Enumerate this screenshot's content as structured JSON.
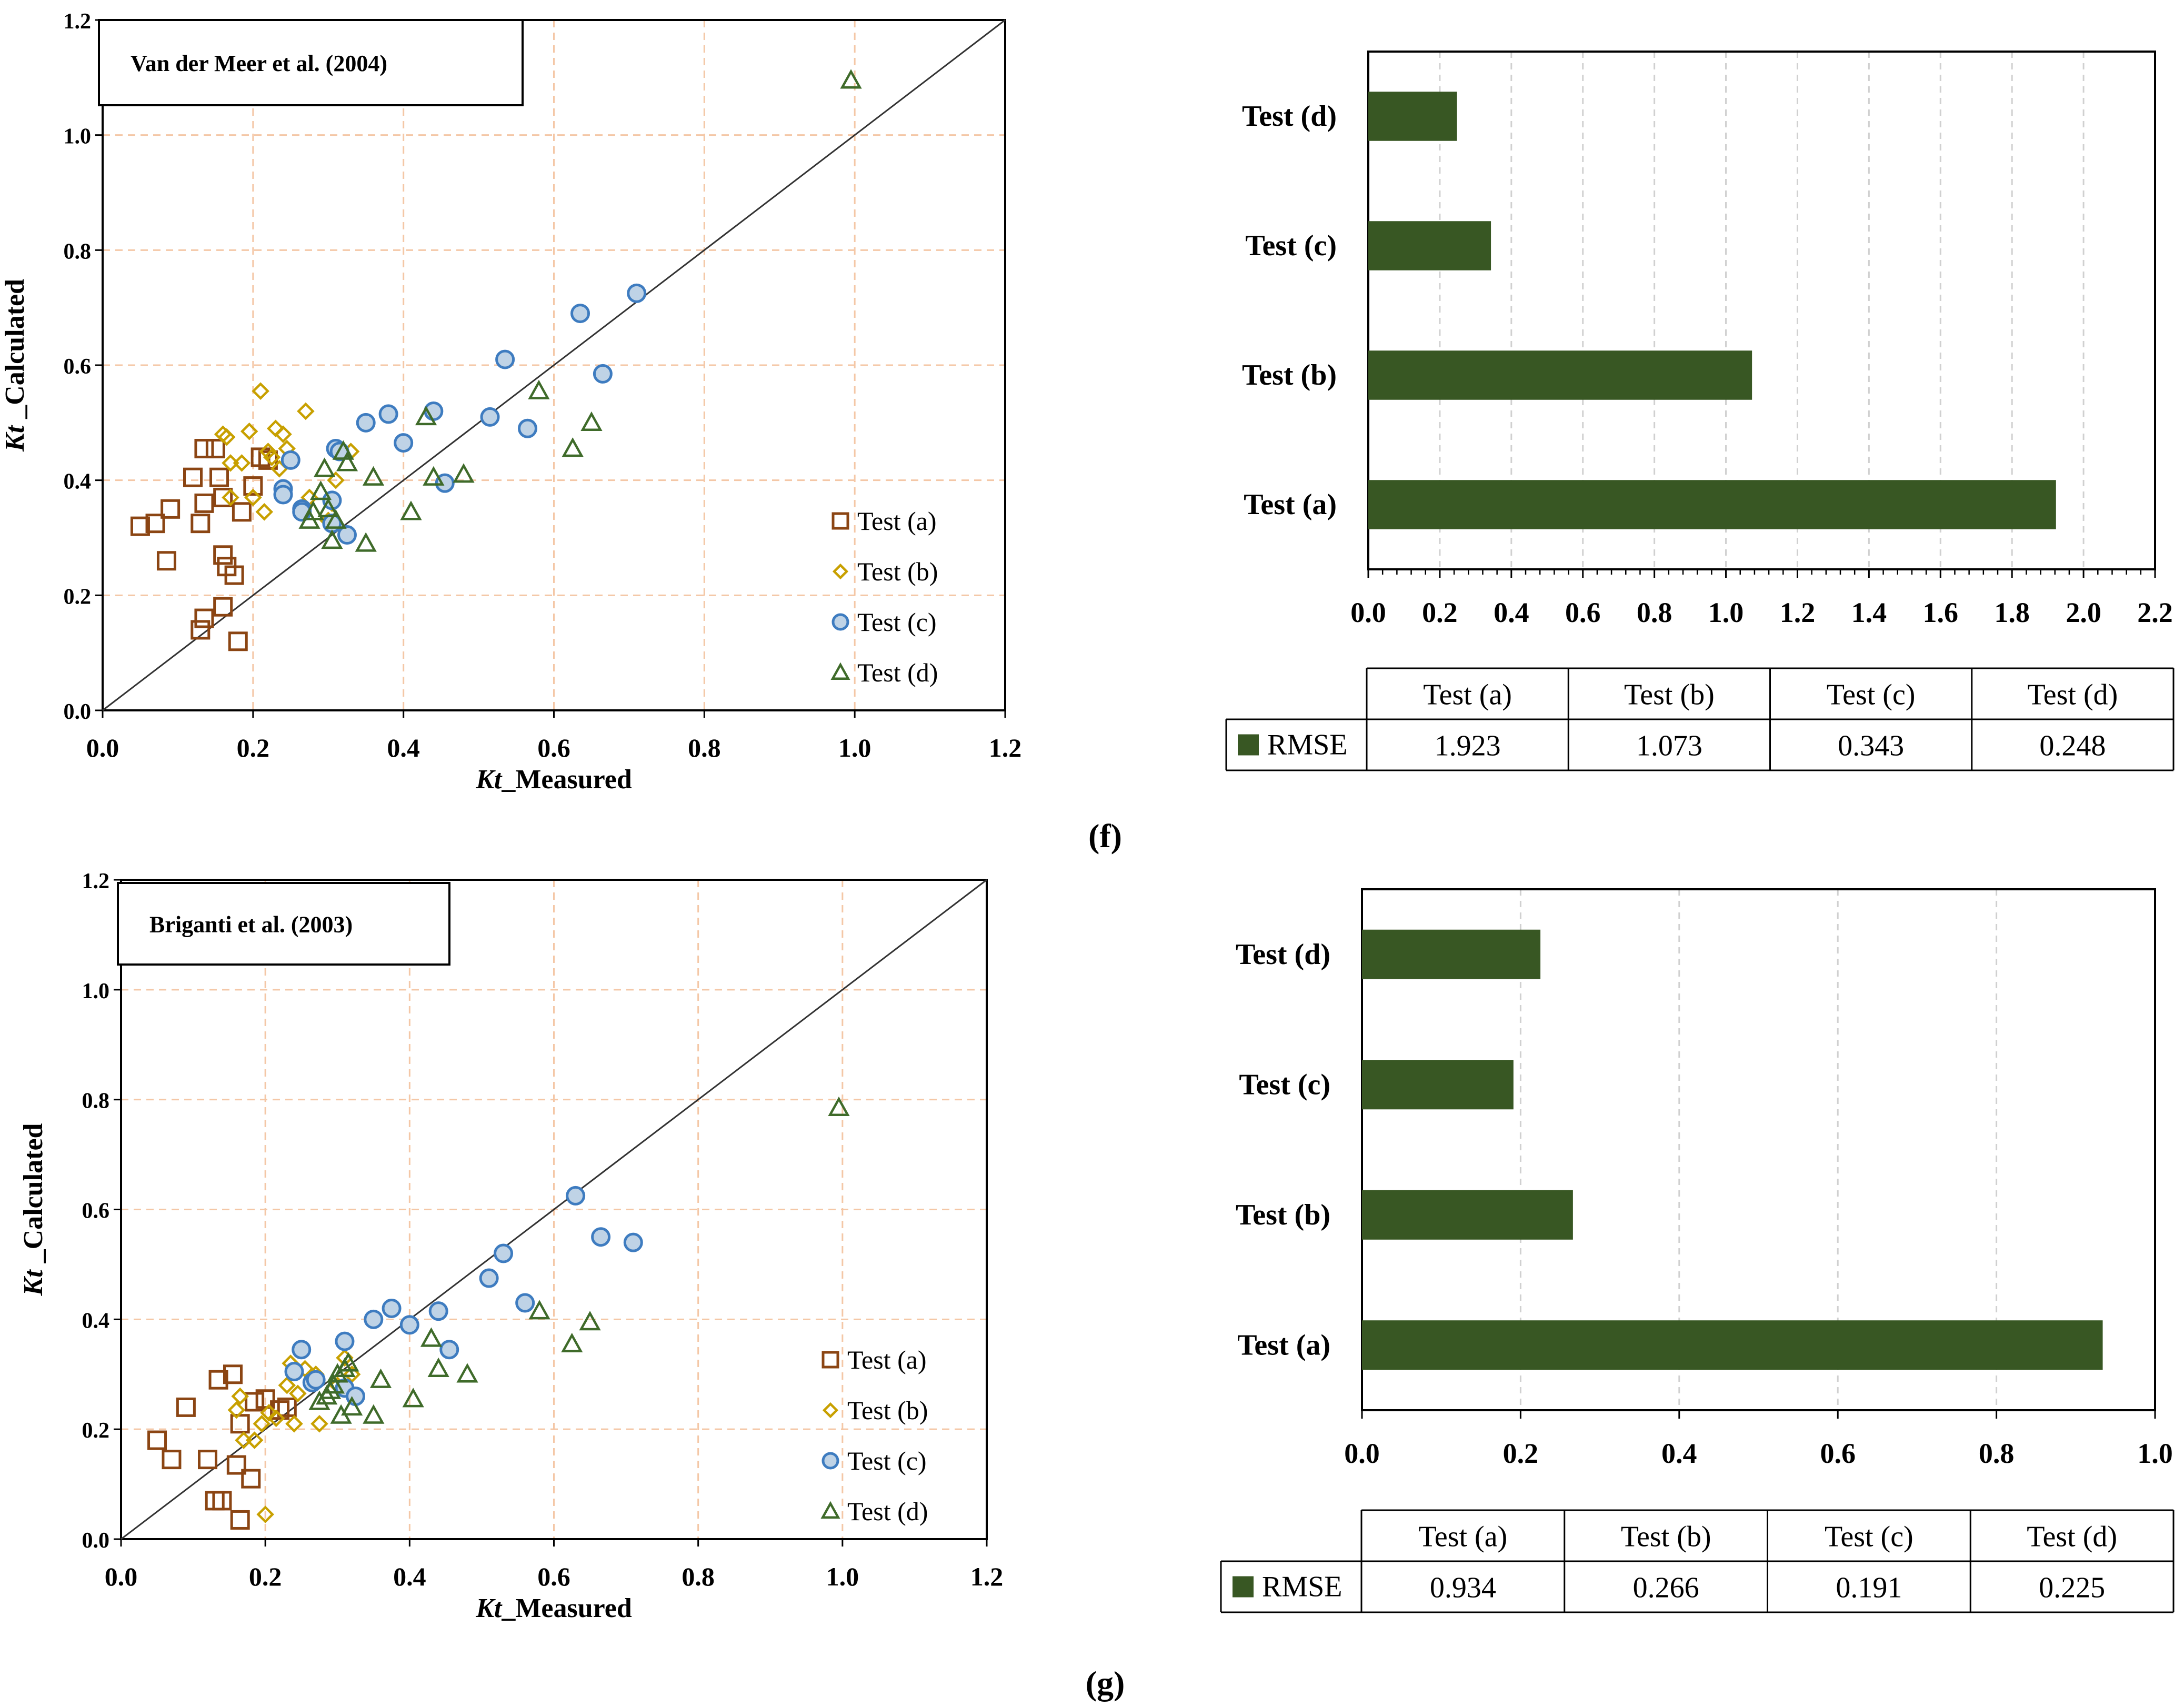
{
  "colors": {
    "test_a": "#8B4513",
    "test_b": "#C8A000",
    "test_c_fill": "#BFD3E6",
    "test_c_stroke": "#3E7CC0",
    "test_d": "#3F6B2A",
    "bar": "#385723",
    "grid": "#F4C7A6",
    "bar_grid": "#D0D0D0"
  },
  "panel_labels": {
    "f": "(f)",
    "g": "(g)"
  },
  "chart_data": [
    {
      "id": "scatter_f",
      "type": "scatter",
      "title": "Van der Meer et al. (2004)",
      "xlabel_italic": "Kt",
      "xlabel_rest": "_Measured",
      "ylabel_italic": "Kt",
      "ylabel_rest": " _Calculated",
      "xlim": [
        0,
        1.2
      ],
      "ylim": [
        0,
        1.2
      ],
      "xticks": [
        "0.0",
        "0.2",
        "0.4",
        "0.6",
        "0.8",
        "1.0",
        "1.2"
      ],
      "yticks": [
        "0.0",
        "0.2",
        "0.4",
        "0.6",
        "0.8",
        "1.0",
        "1.2"
      ],
      "reference_line": [
        [
          0,
          0
        ],
        [
          1.2,
          1.2
        ]
      ],
      "series": [
        {
          "name": "Test (a)",
          "marker": "square",
          "points": [
            [
              0.05,
              0.32
            ],
            [
              0.07,
              0.325
            ],
            [
              0.09,
              0.35
            ],
            [
              0.085,
              0.26
            ],
            [
              0.12,
              0.405
            ],
            [
              0.13,
              0.325
            ],
            [
              0.135,
              0.36
            ],
            [
              0.135,
              0.455
            ],
            [
              0.13,
              0.14
            ],
            [
              0.135,
              0.16
            ],
            [
              0.15,
              0.455
            ],
            [
              0.155,
              0.405
            ],
            [
              0.16,
              0.37
            ],
            [
              0.16,
              0.27
            ],
            [
              0.165,
              0.25
            ],
            [
              0.175,
              0.235
            ],
            [
              0.16,
              0.18
            ],
            [
              0.18,
              0.12
            ],
            [
              0.185,
              0.345
            ],
            [
              0.2,
              0.39
            ],
            [
              0.21,
              0.44
            ],
            [
              0.22,
              0.435
            ]
          ]
        },
        {
          "name": "Test (b)",
          "marker": "diamond",
          "points": [
            [
              0.16,
              0.48
            ],
            [
              0.165,
              0.475
            ],
            [
              0.17,
              0.43
            ],
            [
              0.17,
              0.37
            ],
            [
              0.185,
              0.43
            ],
            [
              0.195,
              0.485
            ],
            [
              0.2,
              0.37
            ],
            [
              0.21,
              0.555
            ],
            [
              0.215,
              0.345
            ],
            [
              0.22,
              0.45
            ],
            [
              0.23,
              0.49
            ],
            [
              0.235,
              0.42
            ],
            [
              0.24,
              0.48
            ],
            [
              0.245,
              0.455
            ],
            [
              0.27,
              0.52
            ],
            [
              0.275,
              0.37
            ],
            [
              0.3,
              0.33
            ],
            [
              0.305,
              0.36
            ],
            [
              0.31,
              0.4
            ],
            [
              0.33,
              0.45
            ],
            [
              0.225,
              0.44
            ]
          ]
        },
        {
          "name": "Test (c)",
          "marker": "circle",
          "points": [
            [
              0.24,
              0.385
            ],
            [
              0.24,
              0.375
            ],
            [
              0.25,
              0.435
            ],
            [
              0.265,
              0.35
            ],
            [
              0.265,
              0.345
            ],
            [
              0.305,
              0.365
            ],
            [
              0.31,
              0.455
            ],
            [
              0.315,
              0.45
            ],
            [
              0.325,
              0.305
            ],
            [
              0.35,
              0.5
            ],
            [
              0.38,
              0.515
            ],
            [
              0.4,
              0.465
            ],
            [
              0.44,
              0.52
            ],
            [
              0.455,
              0.395
            ],
            [
              0.515,
              0.51
            ],
            [
              0.535,
              0.61
            ],
            [
              0.565,
              0.49
            ],
            [
              0.635,
              0.69
            ],
            [
              0.665,
              0.585
            ],
            [
              0.71,
              0.725
            ],
            [
              0.305,
              0.325
            ]
          ]
        },
        {
          "name": "Test (d)",
          "marker": "triangle",
          "points": [
            [
              0.275,
              0.33
            ],
            [
              0.28,
              0.345
            ],
            [
              0.29,
              0.38
            ],
            [
              0.295,
              0.42
            ],
            [
              0.3,
              0.35
            ],
            [
              0.305,
              0.295
            ],
            [
              0.31,
              0.33
            ],
            [
              0.32,
              0.45
            ],
            [
              0.325,
              0.43
            ],
            [
              0.35,
              0.29
            ],
            [
              0.36,
              0.405
            ],
            [
              0.41,
              0.345
            ],
            [
              0.43,
              0.51
            ],
            [
              0.44,
              0.405
            ],
            [
              0.48,
              0.41
            ],
            [
              0.58,
              0.555
            ],
            [
              0.625,
              0.455
            ],
            [
              0.65,
              0.5
            ],
            [
              0.995,
              1.095
            ]
          ]
        }
      ]
    },
    {
      "id": "bar_f",
      "type": "bar",
      "orientation": "horizontal",
      "categories": [
        "Test (a)",
        "Test (b)",
        "Test (c)",
        "Test (d)"
      ],
      "series": [
        {
          "name": "RMSE",
          "values": [
            1.923,
            1.073,
            0.343,
            0.248
          ]
        }
      ],
      "value_labels": [
        "1.923",
        "1.073",
        "0.343",
        "0.248"
      ],
      "xlim": [
        0,
        2.2
      ],
      "xticks": [
        "0.0",
        "0.2",
        "0.4",
        "0.6",
        "0.8",
        "1.0",
        "1.2",
        "1.4",
        "1.6",
        "1.8",
        "2.0",
        "2.2"
      ]
    },
    {
      "id": "scatter_g",
      "type": "scatter",
      "title": "Briganti et al.  (2003)",
      "xlabel_italic": "Kt",
      "xlabel_rest": "_Measured",
      "ylabel_italic": "Kt",
      "ylabel_rest": " _Calculated",
      "xlim": [
        0,
        1.2
      ],
      "ylim": [
        0,
        1.2
      ],
      "xticks": [
        "0.0",
        "0.2",
        "0.4",
        "0.6",
        "0.8",
        "1.0",
        "1.2"
      ],
      "yticks": [
        "0.0",
        "0.2",
        "0.4",
        "0.6",
        "0.8",
        "1.0",
        "1.2"
      ],
      "reference_line": [
        [
          0,
          0
        ],
        [
          1.2,
          1.2
        ]
      ],
      "series": [
        {
          "name": "Test (a)",
          "marker": "square",
          "points": [
            [
              0.05,
              0.18
            ],
            [
              0.07,
              0.145
            ],
            [
              0.09,
              0.24
            ],
            [
              0.12,
              0.145
            ],
            [
              0.13,
              0.07
            ],
            [
              0.135,
              0.29
            ],
            [
              0.14,
              0.07
            ],
            [
              0.155,
              0.3
            ],
            [
              0.16,
              0.135
            ],
            [
              0.165,
              0.21
            ],
            [
              0.165,
              0.035
            ],
            [
              0.18,
              0.11
            ],
            [
              0.185,
              0.25
            ],
            [
              0.2,
              0.255
            ],
            [
              0.22,
              0.235
            ],
            [
              0.23,
              0.24
            ]
          ]
        },
        {
          "name": "Test (b)",
          "marker": "diamond",
          "points": [
            [
              0.16,
              0.235
            ],
            [
              0.165,
              0.26
            ],
            [
              0.17,
              0.18
            ],
            [
              0.185,
              0.18
            ],
            [
              0.195,
              0.21
            ],
            [
              0.2,
              0.045
            ],
            [
              0.205,
              0.23
            ],
            [
              0.215,
              0.22
            ],
            [
              0.23,
              0.28
            ],
            [
              0.235,
              0.32
            ],
            [
              0.24,
              0.21
            ],
            [
              0.245,
              0.265
            ],
            [
              0.255,
              0.31
            ],
            [
              0.27,
              0.3
            ],
            [
              0.275,
              0.21
            ],
            [
              0.3,
              0.28
            ],
            [
              0.31,
              0.33
            ],
            [
              0.32,
              0.3
            ]
          ]
        },
        {
          "name": "Test (c)",
          "marker": "circle",
          "points": [
            [
              0.24,
              0.305
            ],
            [
              0.25,
              0.345
            ],
            [
              0.265,
              0.285
            ],
            [
              0.27,
              0.29
            ],
            [
              0.31,
              0.275
            ],
            [
              0.31,
              0.36
            ],
            [
              0.325,
              0.26
            ],
            [
              0.35,
              0.4
            ],
            [
              0.375,
              0.42
            ],
            [
              0.4,
              0.39
            ],
            [
              0.44,
              0.415
            ],
            [
              0.455,
              0.345
            ],
            [
              0.51,
              0.475
            ],
            [
              0.53,
              0.52
            ],
            [
              0.56,
              0.43
            ],
            [
              0.63,
              0.625
            ],
            [
              0.665,
              0.55
            ],
            [
              0.71,
              0.54
            ]
          ]
        },
        {
          "name": "Test (d)",
          "marker": "triangle",
          "points": [
            [
              0.275,
              0.25
            ],
            [
              0.285,
              0.26
            ],
            [
              0.29,
              0.27
            ],
            [
              0.295,
              0.28
            ],
            [
              0.3,
              0.3
            ],
            [
              0.305,
              0.225
            ],
            [
              0.31,
              0.31
            ],
            [
              0.315,
              0.32
            ],
            [
              0.32,
              0.24
            ],
            [
              0.35,
              0.225
            ],
            [
              0.36,
              0.29
            ],
            [
              0.405,
              0.255
            ],
            [
              0.43,
              0.365
            ],
            [
              0.44,
              0.31
            ],
            [
              0.48,
              0.3
            ],
            [
              0.58,
              0.415
            ],
            [
              0.625,
              0.355
            ],
            [
              0.65,
              0.395
            ],
            [
              0.995,
              0.785
            ]
          ]
        }
      ]
    },
    {
      "id": "bar_g",
      "type": "bar",
      "orientation": "horizontal",
      "categories": [
        "Test (a)",
        "Test (b)",
        "Test (c)",
        "Test (d)"
      ],
      "series": [
        {
          "name": "RMSE",
          "values": [
            0.934,
            0.266,
            0.191,
            0.225
          ]
        }
      ],
      "value_labels": [
        "0.934",
        "0.266",
        "0.191",
        "0.225"
      ],
      "xlim": [
        0,
        1.0
      ],
      "xticks": [
        "0.0",
        "0.2",
        "0.4",
        "0.6",
        "0.8",
        "1.0"
      ]
    }
  ]
}
